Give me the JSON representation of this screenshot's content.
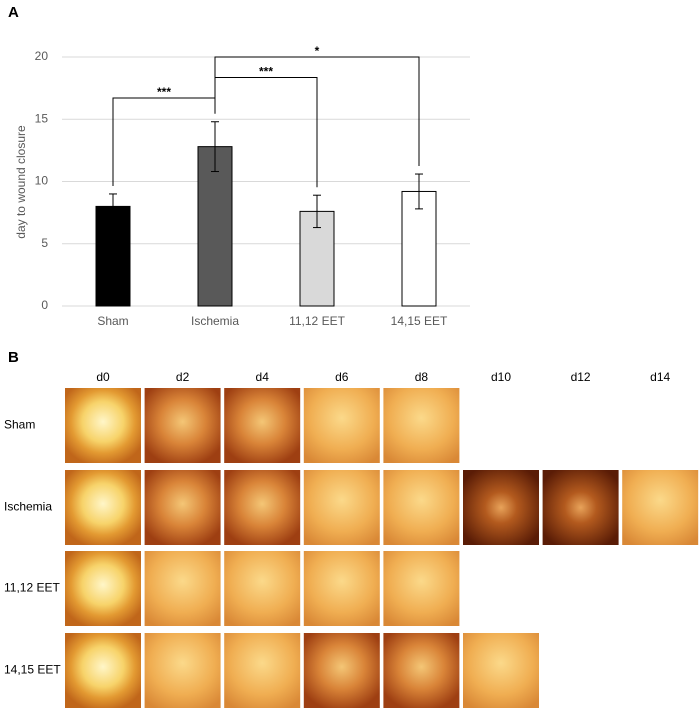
{
  "panels": [
    "A",
    "B"
  ],
  "chart_data": {
    "type": "bar",
    "ylabel": "day  to wound closure",
    "categories": [
      "Sham",
      "Ischemia",
      "11,12 EET",
      "14,15 EET"
    ],
    "values": [
      8.0,
      12.8,
      7.6,
      9.2
    ],
    "errors": [
      1.0,
      2.0,
      1.3,
      1.4
    ],
    "colors": [
      "#000000",
      "#595959",
      "#d9d9d9",
      "#ffffff"
    ],
    "ylim": [
      0,
      20
    ],
    "yticks": [
      0,
      5,
      10,
      15,
      20
    ],
    "grid": true,
    "annotations": [
      {
        "from": "Sham",
        "to": "Ischemia",
        "label": "***"
      },
      {
        "from": "Ischemia",
        "to": "11,12 EET",
        "label": "***"
      },
      {
        "from": "Ischemia",
        "to": "14,15 EET",
        "label": "*"
      }
    ]
  },
  "photo_grid": {
    "columns": [
      "d0",
      "d2",
      "d4",
      "d6",
      "d8",
      "d10",
      "d12",
      "d14"
    ],
    "rows": [
      "Sham",
      "Ischemia",
      "11,12 EET",
      "14,15 EET"
    ]
  }
}
